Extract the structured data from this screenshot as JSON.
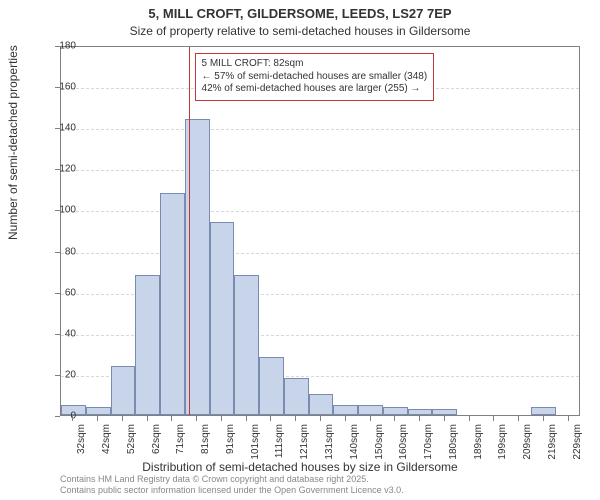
{
  "title": "5, MILL CROFT, GILDERSOME, LEEDS, LS27 7EP",
  "subtitle": "Size of property relative to semi-detached houses in Gildersome",
  "y_axis_label": "Number of semi-detached properties",
  "x_axis_label": "Distribution of semi-detached houses by size in Gildersome",
  "attribution_line1": "Contains HM Land Registry data © Crown copyright and database right 2025.",
  "attribution_line2": "Contains public sector information licensed under the Open Government Licence v3.0.",
  "chart": {
    "type": "histogram",
    "background_color": "#ffffff",
    "bar_fill": "#c8d4ea",
    "bar_border": "#7a8bb0",
    "grid_color": "#d8d8d8",
    "axis_color": "#808080",
    "ref_line_color": "#c23838",
    "anno_border_color": "#c23838",
    "ylim": [
      0,
      180
    ],
    "ytick_step": 20,
    "yticks": [
      0,
      20,
      40,
      60,
      80,
      100,
      120,
      140,
      160,
      180
    ],
    "x_categories": [
      "32sqm",
      "42sqm",
      "52sqm",
      "62sqm",
      "71sqm",
      "81sqm",
      "91sqm",
      "101sqm",
      "111sqm",
      "121sqm",
      "131sqm",
      "140sqm",
      "150sqm",
      "160sqm",
      "170sqm",
      "180sqm",
      "189sqm",
      "199sqm",
      "209sqm",
      "219sqm",
      "229sqm"
    ],
    "bar_values": [
      5,
      4,
      24,
      68,
      108,
      144,
      94,
      68,
      28,
      18,
      10,
      5,
      5,
      4,
      3,
      3,
      0,
      0,
      0,
      4,
      0
    ],
    "ref_line_x_index": 5,
    "annotation": {
      "line1": "5 MILL CROFT: 82sqm",
      "line2": "← 57% of semi-detached houses are smaller (348)",
      "line3": "42% of semi-detached houses are larger (255) →"
    },
    "title_fontsize": 13,
    "subtitle_fontsize": 12,
    "label_fontsize": 12,
    "tick_fontsize": 10,
    "anno_fontsize": 10
  }
}
